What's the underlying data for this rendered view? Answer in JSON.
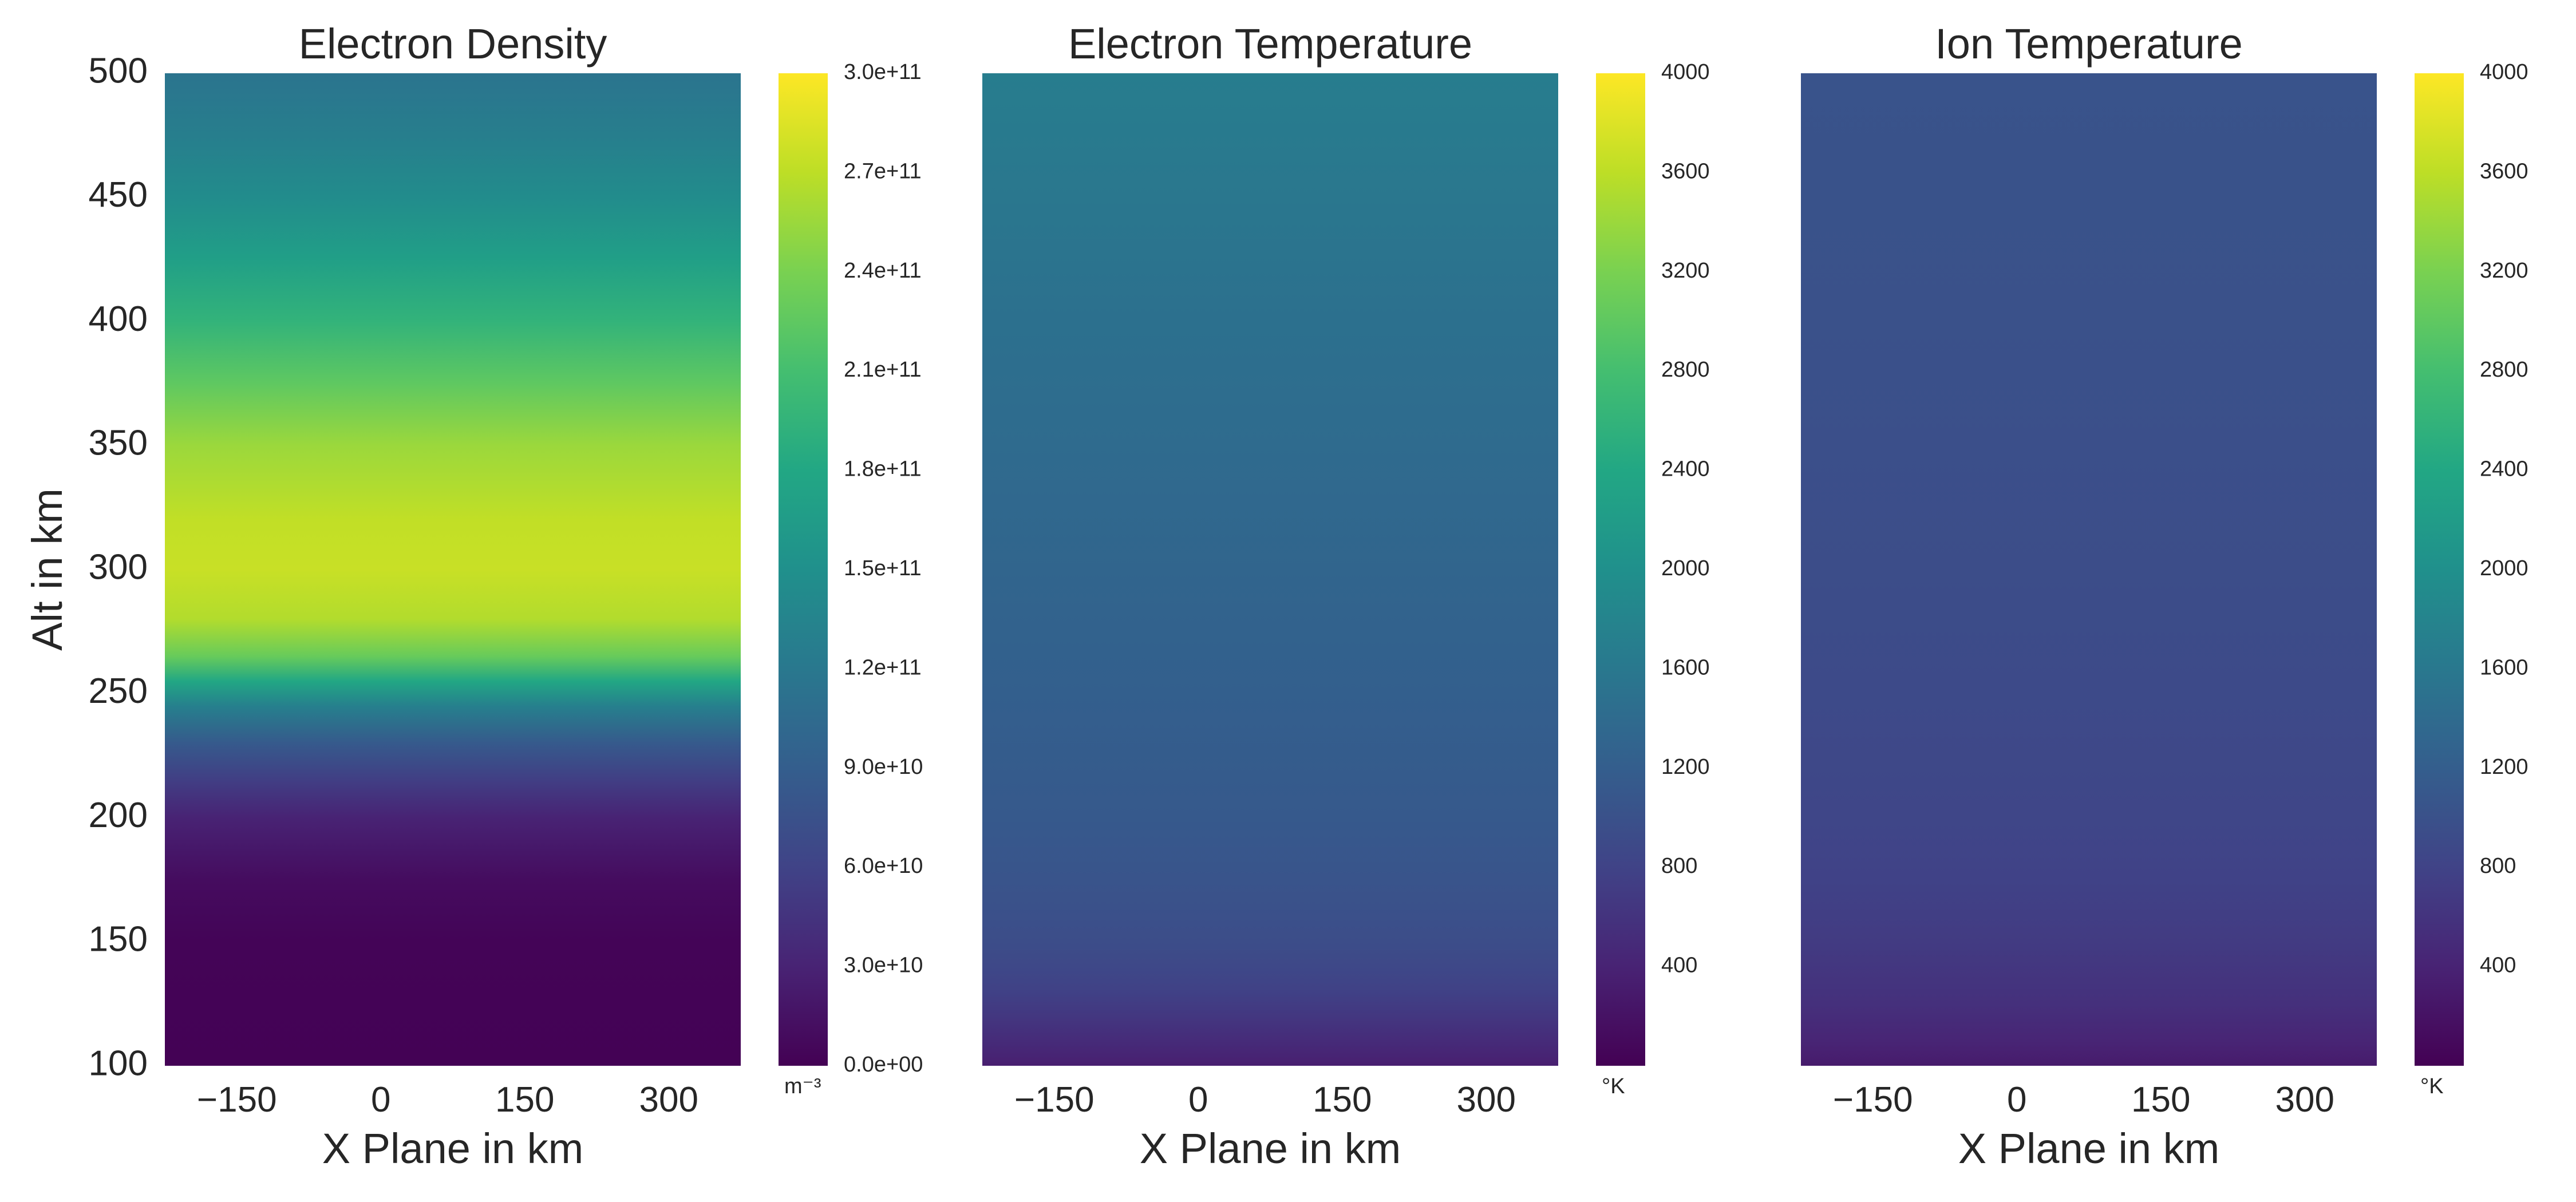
{
  "chart_data": [
    {
      "type": "heatmap",
      "title": "Electron Density",
      "xlabel": "X Plane in km",
      "ylabel": "Alt in km",
      "xlim": [
        -225,
        375
      ],
      "ylim": [
        100,
        500
      ],
      "x_ticks": [
        "−150",
        "0",
        "150",
        "300"
      ],
      "x_tick_values": [
        -150,
        0,
        150,
        300
      ],
      "y_ticks": [
        "100",
        "150",
        "200",
        "250",
        "300",
        "350",
        "400",
        "450",
        "500"
      ],
      "y_tick_values": [
        100,
        150,
        200,
        250,
        300,
        350,
        400,
        450,
        500
      ],
      "colormap": "viridis",
      "grid": false,
      "colorbar": {
        "range": [
          0,
          300000000000.0
        ],
        "ticks": [
          "0.0e+00",
          "3.0e+10",
          "6.0e+10",
          "9.0e+10",
          "1.2e+11",
          "1.5e+11",
          "1.8e+11",
          "2.1e+11",
          "2.4e+11",
          "2.7e+11",
          "3.0e+11"
        ],
        "tick_values": [
          0,
          30000000000.0,
          60000000000.0,
          90000000000.0,
          120000000000.0,
          150000000000.0,
          180000000000.0,
          210000000000.0,
          240000000000.0,
          270000000000.0,
          300000000000.0
        ],
        "unit": "m⁻³"
      },
      "profile": {
        "alt": [
          100,
          150,
          175,
          200,
          215,
          230,
          245,
          255,
          265,
          280,
          300,
          320,
          350,
          375,
          400,
          425,
          450,
          475,
          500
        ],
        "values": [
          1000000000.0,
          3000000000.0,
          10000000000.0,
          30000000000.0,
          55000000000.0,
          85000000000.0,
          130000000000.0,
          180000000000.0,
          230000000000.0,
          265000000000.0,
          275000000000.0,
          272000000000.0,
          255000000000.0,
          225000000000.0,
          195000000000.0,
          170000000000.0,
          145000000000.0,
          128000000000.0,
          115000000000.0
        ]
      }
    },
    {
      "type": "heatmap",
      "title": "Electron Temperature",
      "xlabel": "X Plane in km",
      "xlim": [
        -225,
        375
      ],
      "ylim": [
        100,
        500
      ],
      "x_ticks": [
        "−150",
        "0",
        "150",
        "300"
      ],
      "x_tick_values": [
        -150,
        0,
        150,
        300
      ],
      "colormap": "viridis",
      "grid": false,
      "colorbar": {
        "range": [
          0,
          4000
        ],
        "ticks": [
          "400",
          "800",
          "1200",
          "1600",
          "2000",
          "2400",
          "2800",
          "3200",
          "3600",
          "4000"
        ],
        "tick_values": [
          400,
          800,
          1200,
          1600,
          2000,
          2400,
          2800,
          3200,
          3600,
          4000
        ],
        "unit": "°K"
      },
      "profile": {
        "alt": [
          100,
          110,
          120,
          130,
          140,
          150,
          175,
          200,
          250,
          300,
          350,
          400,
          450,
          500
        ],
        "values": [
          350,
          500,
          650,
          780,
          880,
          950,
          1050,
          1120,
          1220,
          1300,
          1400,
          1480,
          1580,
          1680
        ]
      }
    },
    {
      "type": "heatmap",
      "title": "Ion Temperature",
      "xlabel": "X Plane in km",
      "xlim": [
        -225,
        375
      ],
      "ylim": [
        100,
        500
      ],
      "x_ticks": [
        "−150",
        "0",
        "150",
        "300"
      ],
      "x_tick_values": [
        -150,
        0,
        150,
        300
      ],
      "colormap": "viridis",
      "grid": false,
      "colorbar": {
        "range": [
          0,
          4000
        ],
        "ticks": [
          "400",
          "800",
          "1200",
          "1600",
          "2000",
          "2400",
          "2800",
          "3200",
          "3600",
          "4000"
        ],
        "tick_values": [
          400,
          800,
          1200,
          1600,
          2000,
          2400,
          2800,
          3200,
          3600,
          4000
        ],
        "unit": "°K"
      },
      "profile": {
        "alt": [
          100,
          110,
          125,
          150,
          175,
          200,
          250,
          300,
          350,
          400,
          450,
          500
        ],
        "values": [
          300,
          420,
          560,
          700,
          790,
          850,
          910,
          950,
          980,
          1000,
          1020,
          1040
        ]
      }
    }
  ]
}
